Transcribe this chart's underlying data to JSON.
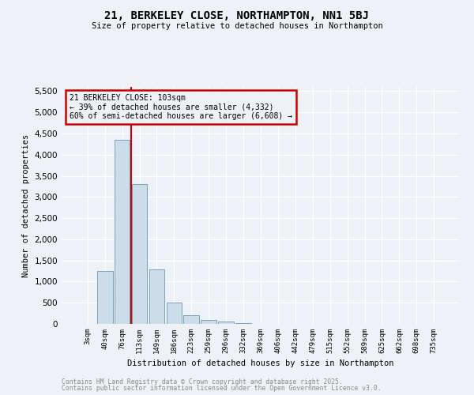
{
  "title": "21, BERKELEY CLOSE, NORTHAMPTON, NN1 5BJ",
  "subtitle": "Size of property relative to detached houses in Northampton",
  "xlabel": "Distribution of detached houses by size in Northampton",
  "ylabel": "Number of detached properties",
  "bar_color": "#ccdce8",
  "bar_edge_color": "#6699bb",
  "categories": [
    "3sqm",
    "40sqm",
    "76sqm",
    "113sqm",
    "149sqm",
    "186sqm",
    "223sqm",
    "259sqm",
    "296sqm",
    "332sqm",
    "369sqm",
    "406sqm",
    "442sqm",
    "479sqm",
    "515sqm",
    "552sqm",
    "589sqm",
    "625sqm",
    "662sqm",
    "698sqm",
    "735sqm"
  ],
  "values": [
    0,
    1260,
    4350,
    3300,
    1280,
    500,
    205,
    90,
    50,
    20,
    8,
    3,
    0,
    0,
    0,
    0,
    0,
    0,
    0,
    0,
    0
  ],
  "ylim": [
    0,
    5600
  ],
  "yticks": [
    0,
    500,
    1000,
    1500,
    2000,
    2500,
    3000,
    3500,
    4000,
    4500,
    5000,
    5500
  ],
  "vline_color": "#cc0000",
  "annotation_text": "21 BERKELEY CLOSE: 103sqm\n← 39% of detached houses are smaller (4,332)\n60% of semi-detached houses are larger (6,608) →",
  "annotation_box_color": "#cc0000",
  "footnote1": "Contains HM Land Registry data © Crown copyright and database right 2025.",
  "footnote2": "Contains public sector information licensed under the Open Government Licence v3.0.",
  "bg_color": "#eef2f7",
  "grid_color": "#ffffff"
}
